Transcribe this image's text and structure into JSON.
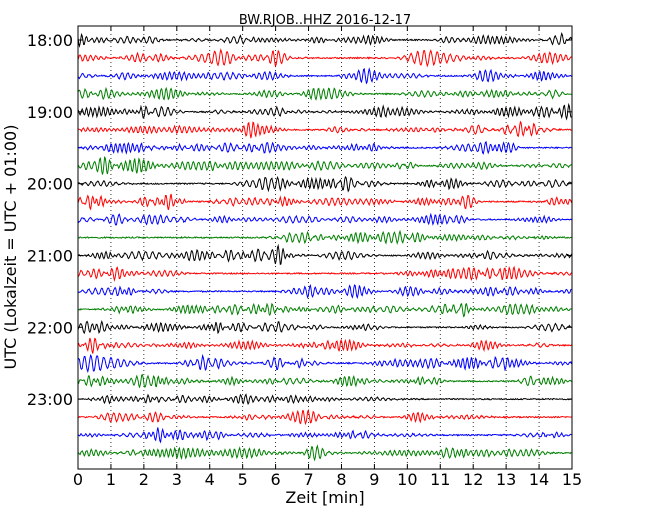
{
  "chart_data": {
    "type": "line",
    "title": "BW.RJOB..HHZ 2016-12-17",
    "xlabel": "Zeit  [min]",
    "ylabel": "UTC (Lokalzeit = UTC + 01:00)",
    "xlim": [
      0,
      15
    ],
    "x_ticks": [
      "0",
      "1",
      "2",
      "3",
      "4",
      "5",
      "6",
      "7",
      "8",
      "9",
      "10",
      "11",
      "12",
      "13",
      "14",
      "15"
    ],
    "vertical_grid": "dotted",
    "y_tick_labels": [
      "18:00",
      "19:00",
      "20:00",
      "21:00",
      "22:00",
      "23:00"
    ],
    "trace_interval_minutes": 15,
    "start_time": "18:00",
    "trace_colors": [
      "#000000",
      "#ff0000",
      "#0000ff",
      "#008000"
    ],
    "trace_count": 24
  }
}
